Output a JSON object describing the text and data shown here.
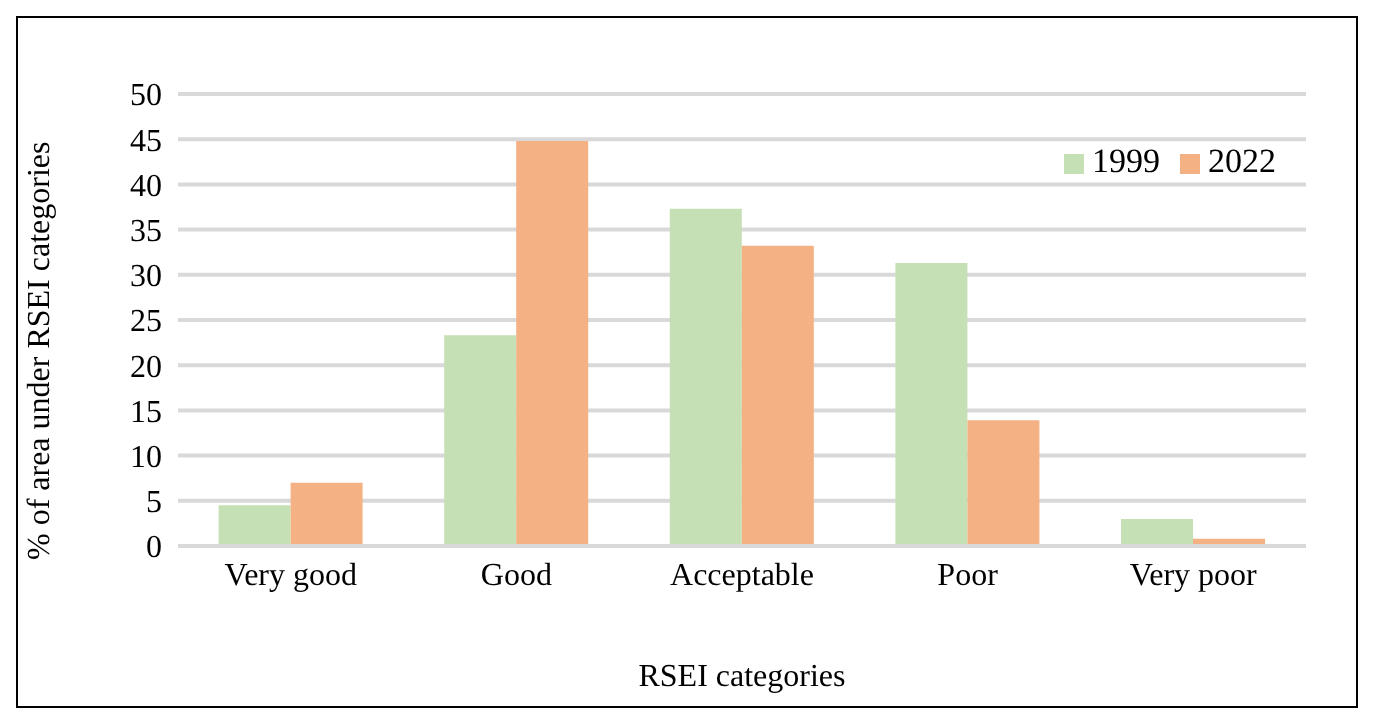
{
  "chart_data": {
    "type": "bar",
    "xlabel": "RSEI categories",
    "ylabel": "% of area under RSEI categories",
    "categories": [
      "Very good",
      "Good",
      "Acceptable",
      "Poor",
      "Very poor"
    ],
    "series": [
      {
        "name": "1999",
        "color": "#c5e0b4",
        "values": [
          4.5,
          23.3,
          37.3,
          31.3,
          3.0
        ]
      },
      {
        "name": "2022",
        "color": "#f4b183",
        "values": [
          7.0,
          44.8,
          33.2,
          13.9,
          0.8
        ]
      }
    ],
    "ylim": [
      0,
      50
    ],
    "yticks": [
      0,
      5,
      10,
      15,
      20,
      25,
      30,
      35,
      40,
      45,
      50
    ],
    "grid": "y",
    "legend": "top right"
  }
}
